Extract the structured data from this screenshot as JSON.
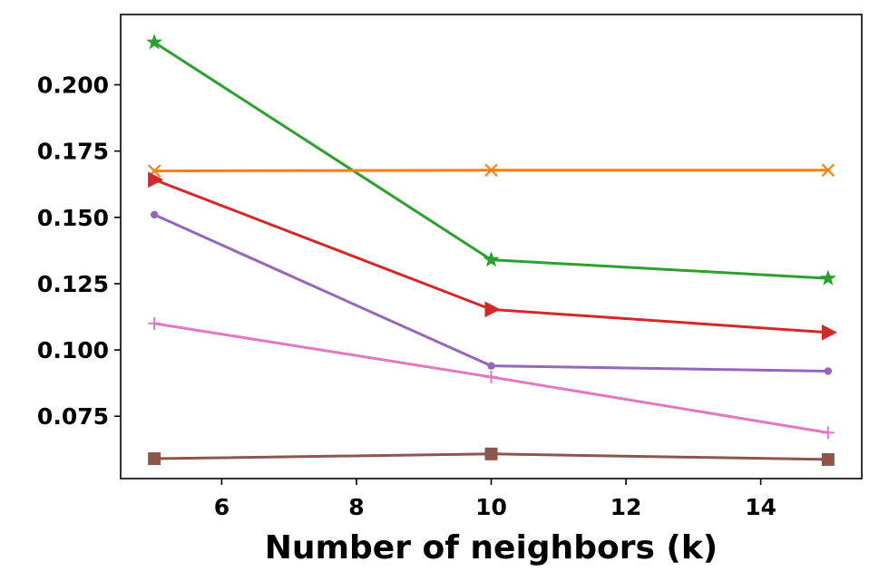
{
  "chart_data": {
    "type": "line",
    "title": "",
    "xlabel": "Number of neighbors (k)",
    "ylabel": "",
    "x": [
      5,
      10,
      15
    ],
    "xlim": [
      4.5,
      15.5
    ],
    "ylim": [
      0.0515,
      0.2265
    ],
    "xticks": [
      6,
      8,
      10,
      12,
      14
    ],
    "xtick_labels": [
      "6",
      "8",
      "10",
      "12",
      "14"
    ],
    "yticks": [
      0.075,
      0.1,
      0.125,
      0.15,
      0.175,
      0.2
    ],
    "ytick_labels": [
      "0.075",
      "0.100",
      "0.125",
      "0.150",
      "0.175",
      "0.200"
    ],
    "grid": false,
    "legend": "none",
    "series": [
      {
        "name": "green-star",
        "color": "#2ca02c",
        "marker": "star",
        "values": [
          0.216,
          0.134,
          0.127
        ]
      },
      {
        "name": "orange-x",
        "color": "#ff7f0e",
        "marker": "x",
        "values": [
          0.1675,
          0.1678,
          0.1678
        ]
      },
      {
        "name": "red-triangle",
        "color": "#d62728",
        "marker": "triangle-right",
        "values": [
          0.1642,
          0.1153,
          0.1066
        ]
      },
      {
        "name": "purple-dot",
        "color": "#9467bd",
        "marker": "dot",
        "values": [
          0.151,
          0.094,
          0.092
        ]
      },
      {
        "name": "pink-plus",
        "color": "#e377c2",
        "marker": "plus",
        "values": [
          0.11,
          0.0898,
          0.0688
        ]
      },
      {
        "name": "brown-square",
        "color": "#8c564b",
        "marker": "square",
        "values": [
          0.059,
          0.0608,
          0.0587
        ]
      }
    ]
  }
}
